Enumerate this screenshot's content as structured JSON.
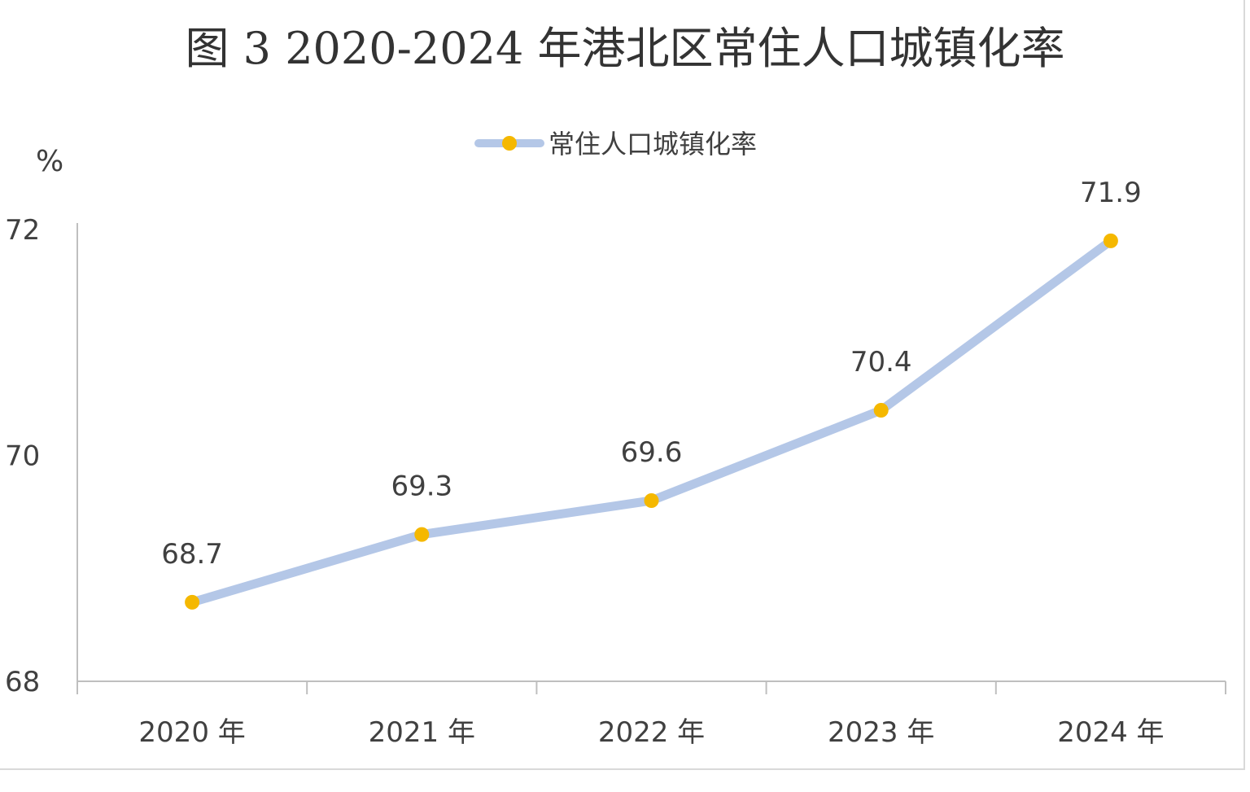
{
  "colors": {
    "line": "#b4c7e7",
    "marker": "#f5b800",
    "axis": "#bfbfbf",
    "text": "#404040",
    "title": "#333333"
  },
  "chart_data": {
    "type": "line",
    "title": "图 3  2020-2024 年港北区常住人口城镇化率",
    "ylabel": "%",
    "xlabel": "",
    "categories": [
      "2020 年",
      "2021 年",
      "2022 年",
      "2023 年",
      "2024 年"
    ],
    "series": [
      {
        "name": "常住人口城镇化率",
        "values": [
          68.7,
          69.3,
          69.6,
          70.4,
          71.9
        ]
      }
    ],
    "ylim": [
      68,
      72
    ],
    "yticks": [
      68,
      70,
      72
    ],
    "grid": false,
    "legend": "top-center",
    "data_labels": true
  }
}
